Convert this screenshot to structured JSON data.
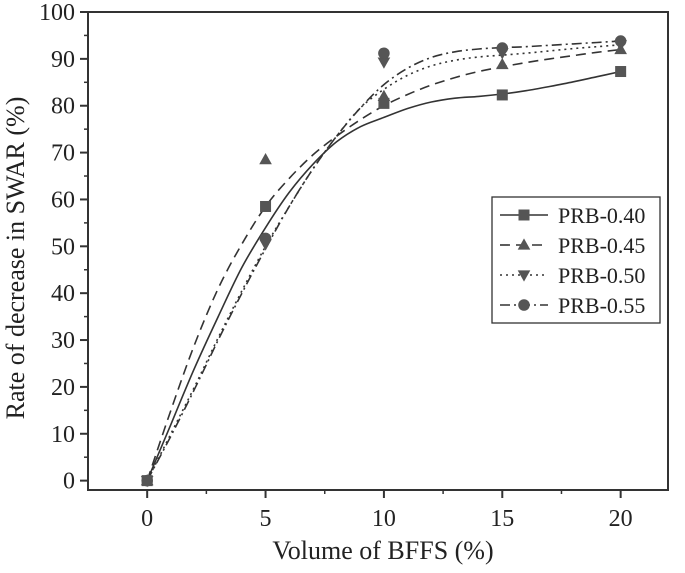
{
  "chart_data": {
    "type": "scatter",
    "title": "",
    "xlabel": "Volume of BFFS (%)",
    "ylabel": "Rate of decrease in SWAR (%)",
    "xlim": [
      -2.5,
      22
    ],
    "ylim": [
      -2,
      100
    ],
    "x_ticks": [
      0,
      5,
      10,
      15,
      20
    ],
    "y_ticks": [
      0,
      10,
      20,
      30,
      40,
      50,
      60,
      70,
      80,
      90,
      100
    ],
    "grid": false,
    "legend_position": "middle-right",
    "fit_curves": true,
    "series": [
      {
        "name": "PRB-0.40",
        "marker": "square",
        "line_style": "solid",
        "x": [
          0,
          5,
          10,
          15,
          20
        ],
        "y": [
          0,
          58.5,
          80.5,
          82.3,
          87.3
        ]
      },
      {
        "name": "PRB-0.45",
        "marker": "triangle-up",
        "line_style": "dashed",
        "x": [
          0,
          5,
          10,
          15,
          20
        ],
        "y": [
          0,
          68.5,
          82.0,
          88.8,
          92.0
        ]
      },
      {
        "name": "PRB-0.50",
        "marker": "triangle-down",
        "line_style": "dotted",
        "x": [
          0,
          5,
          10,
          15,
          20
        ],
        "y": [
          0,
          50.5,
          89.3,
          91.3,
          93.0
        ]
      },
      {
        "name": "PRB-0.55",
        "marker": "circle",
        "line_style": "dash-dot",
        "x": [
          0,
          5,
          10,
          15,
          20
        ],
        "y": [
          0,
          51.7,
          91.2,
          92.3,
          93.8
        ]
      }
    ],
    "fits": [
      {
        "series": "PRB-0.40",
        "points": [
          [
            0,
            0
          ],
          [
            1,
            12
          ],
          [
            2,
            24
          ],
          [
            3,
            35
          ],
          [
            4,
            45.5
          ],
          [
            5,
            54
          ],
          [
            6,
            61.5
          ],
          [
            7,
            67.5
          ],
          [
            8,
            72.3
          ],
          [
            9,
            75.5
          ],
          [
            10,
            77.5
          ],
          [
            11,
            79.4
          ],
          [
            12,
            80.8
          ],
          [
            13,
            81.6
          ],
          [
            14,
            82.0
          ],
          [
            15,
            82.5
          ],
          [
            16,
            83.2
          ],
          [
            17,
            84.1
          ],
          [
            18,
            85.1
          ],
          [
            19,
            86.2
          ],
          [
            20,
            87.3
          ]
        ]
      },
      {
        "series": "PRB-0.45",
        "points": [
          [
            0,
            0
          ],
          [
            1,
            15
          ],
          [
            2,
            29
          ],
          [
            3,
            41
          ],
          [
            4,
            50.5
          ],
          [
            5,
            58.5
          ],
          [
            6,
            64.5
          ],
          [
            7,
            69.5
          ],
          [
            8,
            73.5
          ],
          [
            9,
            77
          ],
          [
            10,
            80
          ],
          [
            11,
            82.4
          ],
          [
            12,
            84.4
          ],
          [
            13,
            86.0
          ],
          [
            14,
            87.3
          ],
          [
            15,
            88.3
          ],
          [
            16,
            89.2
          ],
          [
            17,
            90.0
          ],
          [
            18,
            90.7
          ],
          [
            19,
            91.4
          ],
          [
            20,
            92.0
          ]
        ]
      },
      {
        "series": "PRB-0.50",
        "points": [
          [
            0,
            0
          ],
          [
            1,
            10
          ],
          [
            2,
            20
          ],
          [
            3,
            30.5
          ],
          [
            4,
            40.5
          ],
          [
            5,
            50
          ],
          [
            6,
            58.5
          ],
          [
            7,
            66.5
          ],
          [
            8,
            73.5
          ],
          [
            9,
            79.5
          ],
          [
            10,
            83.5
          ],
          [
            11,
            86.5
          ],
          [
            12,
            88.5
          ],
          [
            13,
            89.7
          ],
          [
            14,
            90.4
          ],
          [
            15,
            90.8
          ],
          [
            16,
            91.2
          ],
          [
            17,
            91.7
          ],
          [
            18,
            92.2
          ],
          [
            19,
            92.6
          ],
          [
            20,
            93.0
          ]
        ]
      },
      {
        "series": "PRB-0.55",
        "points": [
          [
            0,
            0
          ],
          [
            1,
            9.5
          ],
          [
            2,
            19.5
          ],
          [
            3,
            30
          ],
          [
            4,
            40
          ],
          [
            5,
            49.5
          ],
          [
            6,
            58.5
          ],
          [
            7,
            66.5
          ],
          [
            8,
            73.5
          ],
          [
            9,
            79.5
          ],
          [
            10,
            84.5
          ],
          [
            11,
            88
          ],
          [
            12,
            90.3
          ],
          [
            13,
            91.5
          ],
          [
            14,
            92.1
          ],
          [
            15,
            92.4
          ],
          [
            16,
            92.6
          ],
          [
            17,
            92.9
          ],
          [
            18,
            93.2
          ],
          [
            19,
            93.5
          ],
          [
            20,
            93.8
          ]
        ]
      }
    ]
  },
  "colors": {
    "ink": "#333333",
    "marker": "#555555",
    "background": "#ffffff"
  }
}
